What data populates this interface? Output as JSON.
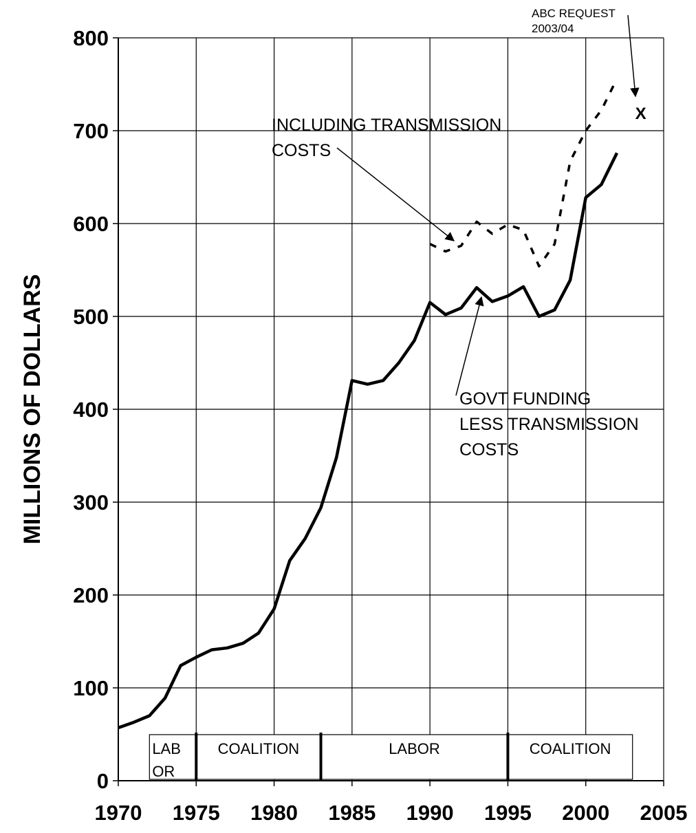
{
  "chart_data": {
    "type": "line",
    "ylabel": "MILLIONS OF DOLLARS",
    "x": [
      1970,
      1971,
      1972,
      1973,
      1974,
      1975,
      1976,
      1977,
      1978,
      1979,
      1980,
      1981,
      1982,
      1983,
      1984,
      1985,
      1986,
      1987,
      1988,
      1989,
      1990,
      1991,
      1992,
      1993,
      1994,
      1995,
      1996,
      1997,
      1998,
      1999,
      2000,
      2001,
      2002
    ],
    "series": [
      {
        "color": "#000000",
        "style": "solid",
        "values": [
          57,
          63,
          70,
          89,
          124,
          133,
          141,
          143,
          148,
          159,
          185,
          237,
          261,
          294,
          348,
          431,
          427,
          431,
          450,
          474,
          515,
          502,
          509,
          531,
          516,
          522,
          532,
          500,
          507,
          539,
          628,
          642,
          676
        ]
      },
      {
        "color": "#000000",
        "style": "dashed",
        "values": [
          null,
          null,
          null,
          null,
          null,
          null,
          null,
          null,
          null,
          null,
          null,
          null,
          null,
          null,
          null,
          null,
          null,
          null,
          null,
          null,
          578,
          570,
          576,
          602,
          589,
          599,
          593,
          554,
          578,
          667,
          700,
          722,
          756
        ]
      }
    ],
    "markers": [
      {
        "x": 2003,
        "y": 720,
        "label": "X"
      }
    ],
    "annotations": [
      {
        "lines": [
          "INCLUDING TRANSMISSION",
          "COSTS"
        ]
      },
      {
        "lines": [
          "GOVT FUNDING",
          "LESS TRANSMISSION",
          "COSTS"
        ]
      },
      {
        "lines": [
          "ABC REQUEST",
          "2003/04"
        ]
      }
    ],
    "periods": [
      {
        "label": [
          "LAB",
          "OR"
        ],
        "start": 1972,
        "end": 1975
      },
      {
        "label": [
          "COALITION"
        ],
        "start": 1975,
        "end": 1983
      },
      {
        "label": [
          "LABOR"
        ],
        "start": 1983,
        "end": 1995
      },
      {
        "label": [
          "COALITION"
        ],
        "start": 1995,
        "end": 2003
      }
    ],
    "xlim": [
      1970,
      2005
    ],
    "xticks": [
      1970,
      1975,
      1980,
      1985,
      1990,
      1995,
      2000,
      2005
    ],
    "ylim": [
      0,
      800
    ],
    "yticks": [
      0,
      100,
      200,
      300,
      400,
      500,
      600,
      700,
      800
    ],
    "grid": true
  }
}
